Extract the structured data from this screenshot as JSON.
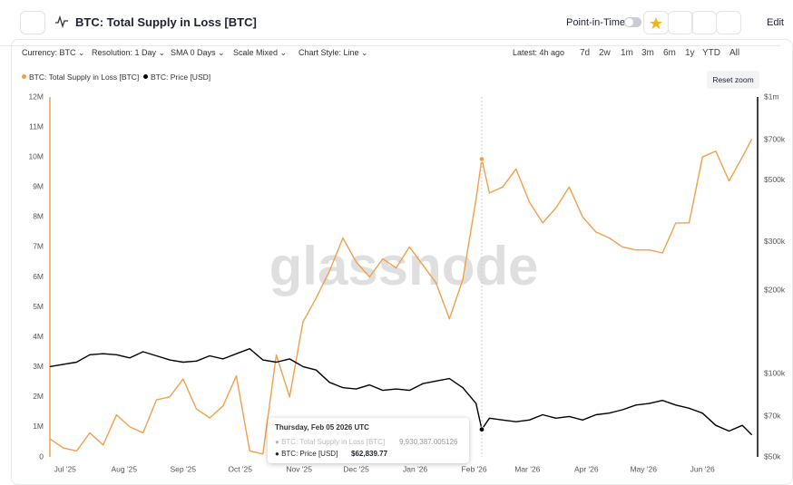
{
  "header": {
    "title": "BTC: Total Supply in Loss [BTC]",
    "point_in_time": "Point-in-Time",
    "edit": "Edit"
  },
  "toolbar": {
    "dropdowns": [
      "Currency: BTC",
      "Resolution: 1 Day",
      "SMA 0 Days",
      "Scale Mixed",
      "Chart Style: Line"
    ],
    "latest": "Latest: 4h ago",
    "ranges": [
      "7d",
      "2w",
      "1m",
      "3m",
      "6m",
      "1y",
      "YTD",
      "All"
    ],
    "reset_zoom": "Reset zoom"
  },
  "chart_data": {
    "type": "line",
    "watermark": "glassnode",
    "x": [
      "2025-06-23",
      "2025-06-30",
      "2025-07-07",
      "2025-07-14",
      "2025-07-21",
      "2025-07-28",
      "2025-08-04",
      "2025-08-11",
      "2025-08-18",
      "2025-08-25",
      "2025-09-01",
      "2025-09-08",
      "2025-09-15",
      "2025-09-22",
      "2025-09-29",
      "2025-10-06",
      "2025-10-13",
      "2025-10-20",
      "2025-10-27",
      "2025-11-03",
      "2025-11-10",
      "2025-11-17",
      "2025-11-24",
      "2025-12-01",
      "2025-12-08",
      "2025-12-15",
      "2025-12-22",
      "2025-12-29",
      "2026-01-05",
      "2026-01-12",
      "2026-01-19",
      "2026-01-26",
      "2026-02-02",
      "2026-02-05",
      "2026-02-09",
      "2026-02-16",
      "2026-02-23",
      "2026-03-02",
      "2026-03-09",
      "2026-03-16",
      "2026-03-23",
      "2026-03-30",
      "2026-04-06",
      "2026-04-13",
      "2026-04-20",
      "2026-04-27",
      "2026-05-04",
      "2026-05-11",
      "2026-05-18",
      "2026-05-25",
      "2026-06-01",
      "2026-06-08",
      "2026-06-15",
      "2026-06-22",
      "2026-06-27"
    ],
    "xlim": [
      "2025-06-23",
      "2026-06-30"
    ],
    "xticks": [
      {
        "value": "2025-07-01",
        "label": "Jul '25"
      },
      {
        "value": "2025-08-01",
        "label": "Aug '25"
      },
      {
        "value": "2025-09-01",
        "label": "Sep '25"
      },
      {
        "value": "2025-10-01",
        "label": "Oct '25"
      },
      {
        "value": "2025-11-01",
        "label": "Nov '25"
      },
      {
        "value": "2025-12-01",
        "label": "Dec '25"
      },
      {
        "value": "2026-01-01",
        "label": "Jan '26"
      },
      {
        "value": "2026-02-01",
        "label": "Feb '26"
      },
      {
        "value": "2026-03-01",
        "label": "Mar '26"
      },
      {
        "value": "2026-04-01",
        "label": "Apr '26"
      },
      {
        "value": "2026-05-01",
        "label": "May '26"
      },
      {
        "value": "2026-06-01",
        "label": "Jun '26"
      }
    ],
    "ylim": [
      0,
      12000000
    ],
    "yticks": [
      0,
      {
        "value": 1000000,
        "label": "1M"
      },
      {
        "value": 2000000,
        "label": "2M"
      },
      {
        "value": 3000000,
        "label": "3M"
      },
      {
        "value": 4000000,
        "label": "4M"
      },
      {
        "value": 5000000,
        "label": "5M"
      },
      {
        "value": 6000000,
        "label": "6M"
      },
      {
        "value": 7000000,
        "label": "7M"
      },
      {
        "value": 8000000,
        "label": "8M"
      },
      {
        "value": 9000000,
        "label": "9M"
      },
      {
        "value": 10000000,
        "label": "10M"
      },
      {
        "value": 11000000,
        "label": "11M"
      },
      {
        "value": 12000000,
        "label": "12M"
      }
    ],
    "y2lim": [
      50000,
      1000000
    ],
    "y2scale": "log",
    "y2ticks": [
      {
        "value": 50000,
        "label": "$50k"
      },
      {
        "value": 70000,
        "label": "$70k"
      },
      {
        "value": 100000,
        "label": "$100k"
      },
      {
        "value": 200000,
        "label": "$200k"
      },
      {
        "value": 300000,
        "label": "$300k"
      },
      {
        "value": 500000,
        "label": "$500k"
      },
      {
        "value": 700000,
        "label": "$700k"
      },
      {
        "value": 1000000,
        "label": "$1m"
      }
    ],
    "series": [
      {
        "name": "BTC: Total Supply in Loss [BTC]",
        "color": "#f0a04b",
        "axis": "y",
        "values": [
          600000,
          300000,
          200000,
          800000,
          400000,
          1400000,
          1000000,
          800000,
          1900000,
          2000000,
          2600000,
          1600000,
          1300000,
          1700000,
          2700000,
          200000,
          100000,
          3400000,
          2000000,
          4500000,
          5300000,
          6200000,
          7300000,
          6500000,
          6000000,
          6600000,
          6300000,
          7000000,
          6400000,
          5800000,
          4600000,
          5900000,
          8600000,
          9930387.005126,
          8800000,
          9000000,
          9600000,
          8500000,
          7800000,
          8300000,
          9000000,
          8000000,
          7500000,
          7300000,
          7000000,
          6900000,
          6900000,
          6800000,
          7800000,
          7800000,
          10000000,
          10200000,
          9200000,
          10000000,
          10600000
        ]
      },
      {
        "name": "BTC: Price [USD]",
        "color": "#000000",
        "axis": "y2",
        "values": [
          106000,
          108000,
          110000,
          117000,
          118000,
          117000,
          114000,
          120000,
          116000,
          112000,
          110000,
          111000,
          116000,
          113000,
          118000,
          123000,
          112000,
          110000,
          113000,
          106000,
          103000,
          93000,
          89000,
          88000,
          91000,
          87000,
          88000,
          87000,
          92000,
          94000,
          96000,
          89000,
          78000,
          62839.77,
          69000,
          68000,
          67000,
          68000,
          71000,
          69000,
          70000,
          68000,
          71000,
          72000,
          74000,
          77000,
          78000,
          80000,
          77000,
          75000,
          72000,
          65000,
          62000,
          65000,
          60000
        ]
      }
    ],
    "tooltip": {
      "title": "Thursday, Feb 05 2026 UTC",
      "x": "2026-02-05",
      "labels": [
        "9,930,387.005126",
        "$62,839.77"
      ]
    }
  }
}
